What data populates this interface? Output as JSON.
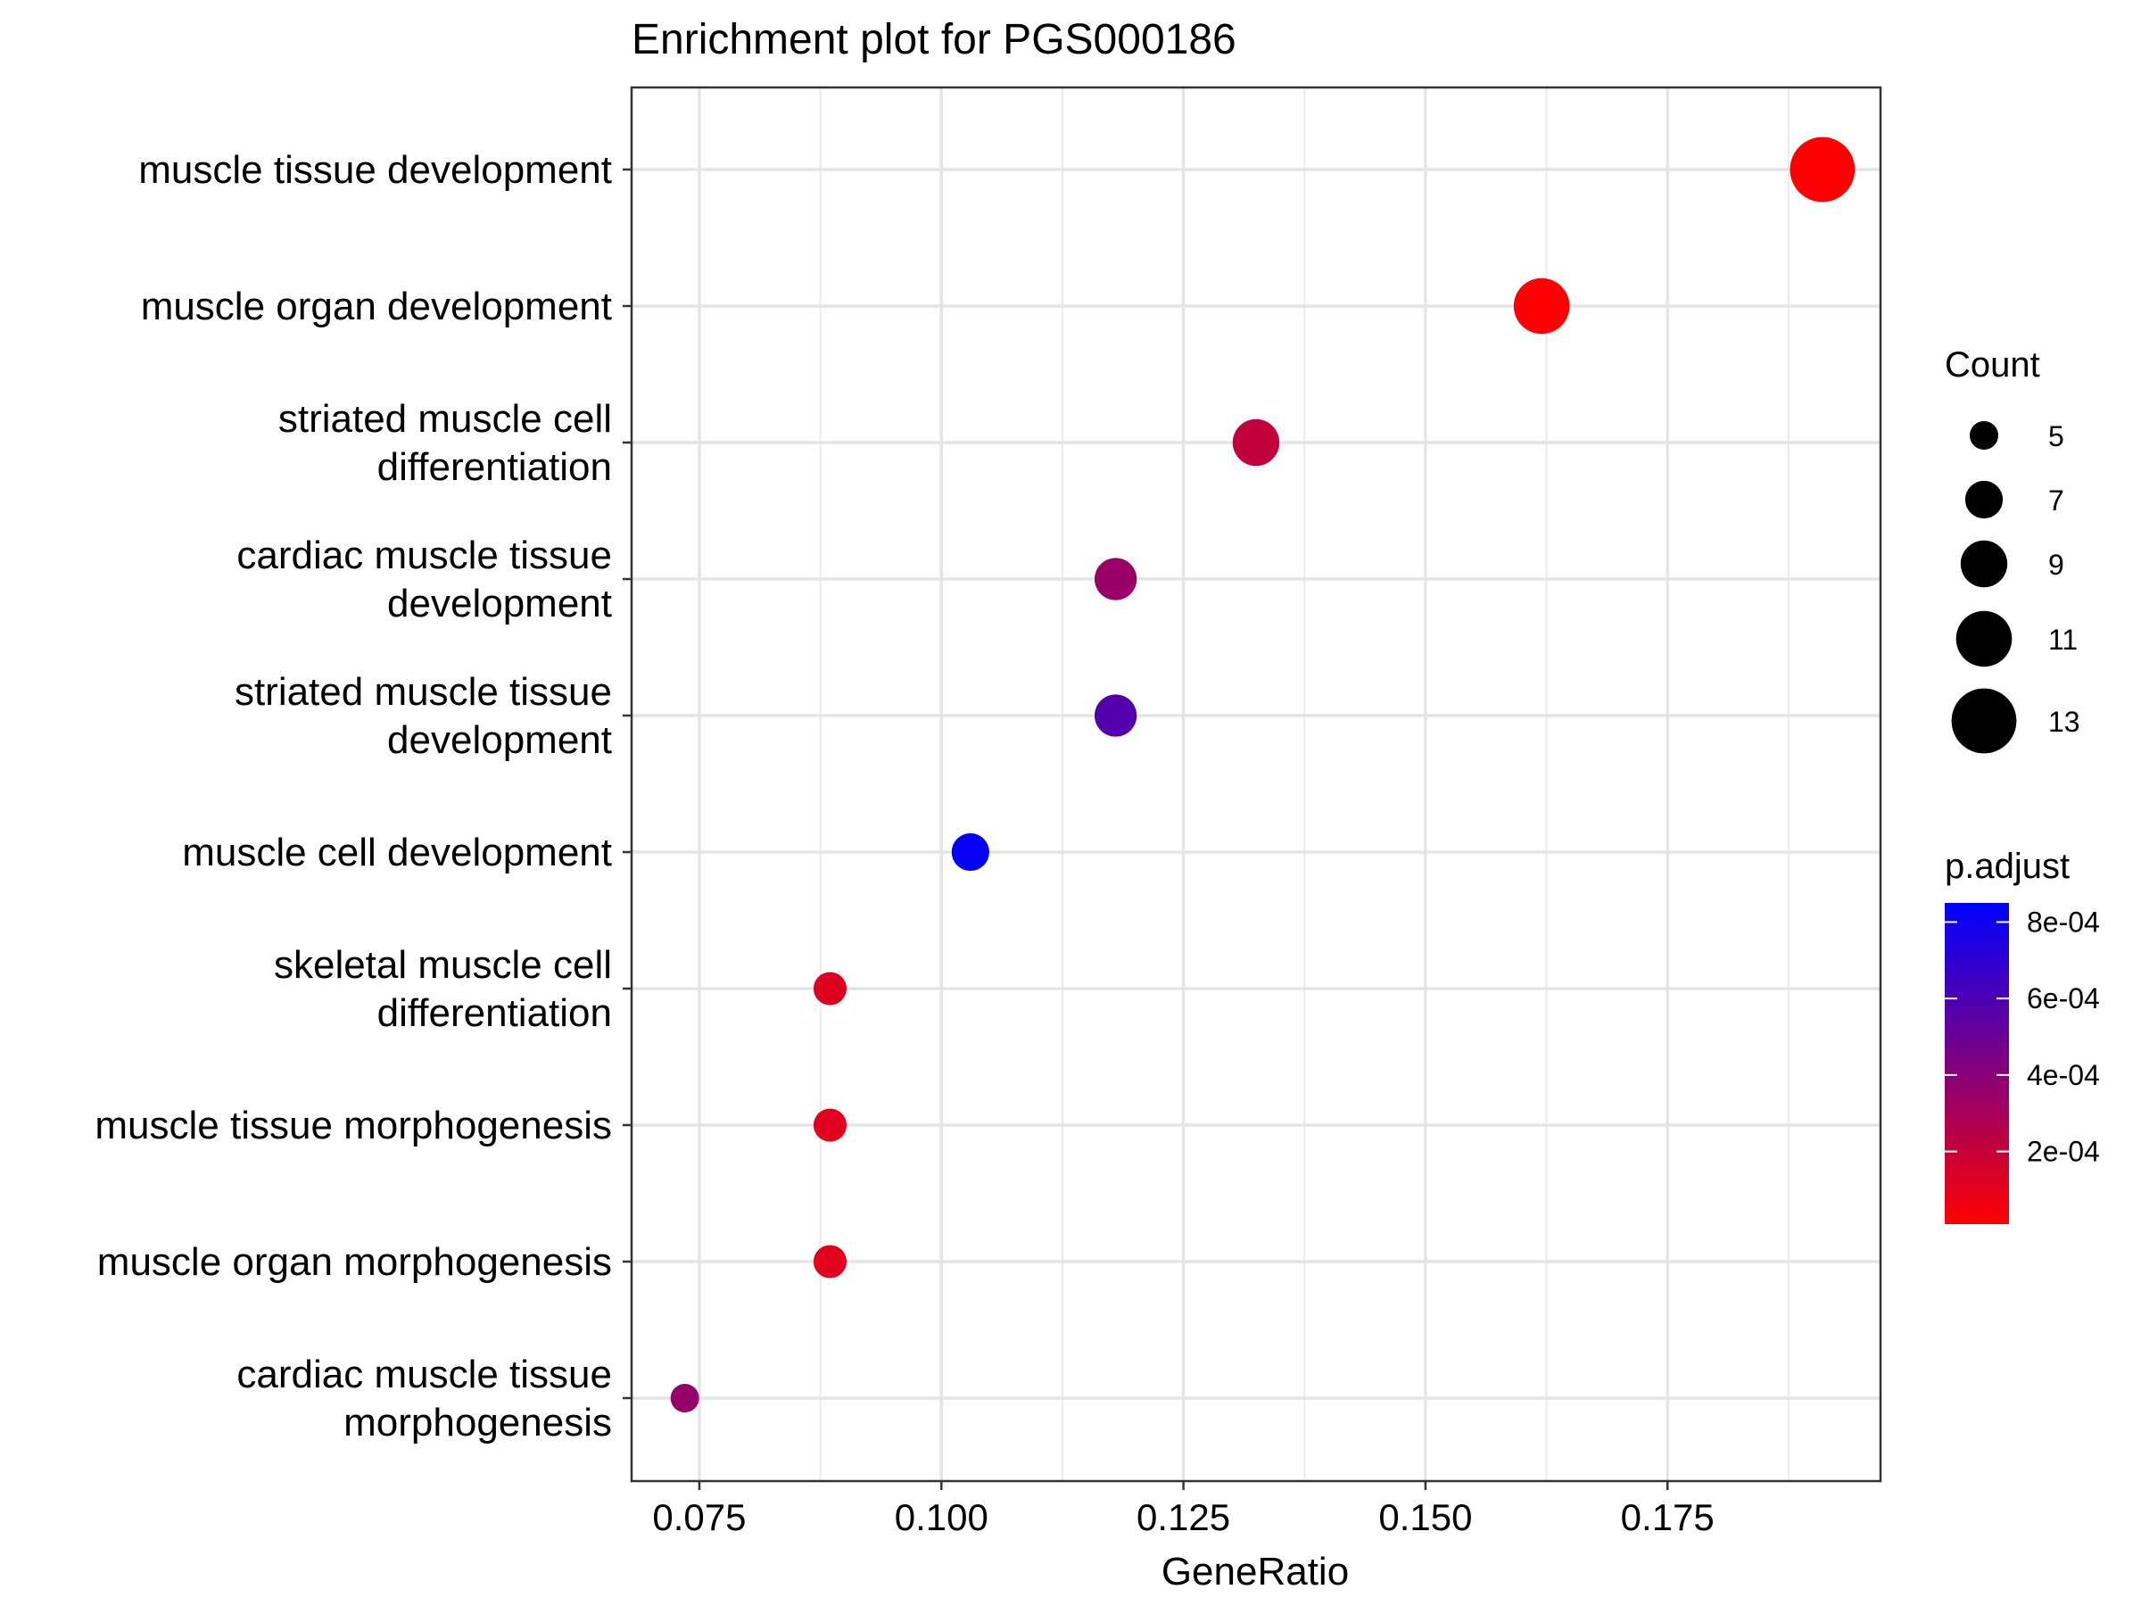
{
  "chart_data": {
    "type": "scatter",
    "title": "Enrichment plot for PGS000186",
    "xlabel": "GeneRatio",
    "ylabel": "",
    "xlim": [
      0.068,
      0.197
    ],
    "x_ticks": [
      0.075,
      0.1,
      0.125,
      0.15,
      0.175
    ],
    "x_tick_labels": [
      "0.075",
      "0.100",
      "0.125",
      "0.150",
      "0.175"
    ],
    "grid": true,
    "points": [
      {
        "term": [
          "muscle tissue development"
        ],
        "gene_ratio": 0.191,
        "count": 13,
        "p_adjust": 1e-05
      },
      {
        "term": [
          "muscle organ development"
        ],
        "gene_ratio": 0.162,
        "count": 11,
        "p_adjust": 2e-05
      },
      {
        "term": [
          "striated muscle cell",
          "differentiation"
        ],
        "gene_ratio": 0.1325,
        "count": 9,
        "p_adjust": 0.00021
      },
      {
        "term": [
          "cardiac muscle tissue",
          "development"
        ],
        "gene_ratio": 0.118,
        "count": 8,
        "p_adjust": 0.00035
      },
      {
        "term": [
          "striated muscle tissue",
          "development"
        ],
        "gene_ratio": 0.118,
        "count": 8,
        "p_adjust": 0.00058
      },
      {
        "term": [
          "muscle cell development"
        ],
        "gene_ratio": 0.103,
        "count": 7,
        "p_adjust": 0.00083
      },
      {
        "term": [
          "skeletal muscle cell",
          "differentiation"
        ],
        "gene_ratio": 0.0885,
        "count": 6,
        "p_adjust": 0.00012
      },
      {
        "term": [
          "muscle tissue morphogenesis"
        ],
        "gene_ratio": 0.0885,
        "count": 6,
        "p_adjust": 0.00011
      },
      {
        "term": [
          "muscle organ morphogenesis"
        ],
        "gene_ratio": 0.0885,
        "count": 6,
        "p_adjust": 0.00011
      },
      {
        "term": [
          "cardiac muscle tissue",
          "morphogenesis"
        ],
        "gene_ratio": 0.0735,
        "count": 5,
        "p_adjust": 0.00036
      }
    ],
    "size_legend": {
      "title": "Count",
      "values": [
        5,
        7,
        9,
        11,
        13
      ],
      "labels": [
        "5",
        "7",
        "9",
        "11",
        "13"
      ]
    },
    "color_legend": {
      "title": "p.adjust",
      "low_color": "#ff0000",
      "high_color": "#0000ff",
      "range": [
        1e-05,
        0.00085
      ],
      "breaks": [
        0.0002,
        0.0004,
        0.0006,
        0.0008
      ],
      "labels": [
        "2e-04",
        "4e-04",
        "6e-04",
        "8e-04"
      ]
    }
  }
}
